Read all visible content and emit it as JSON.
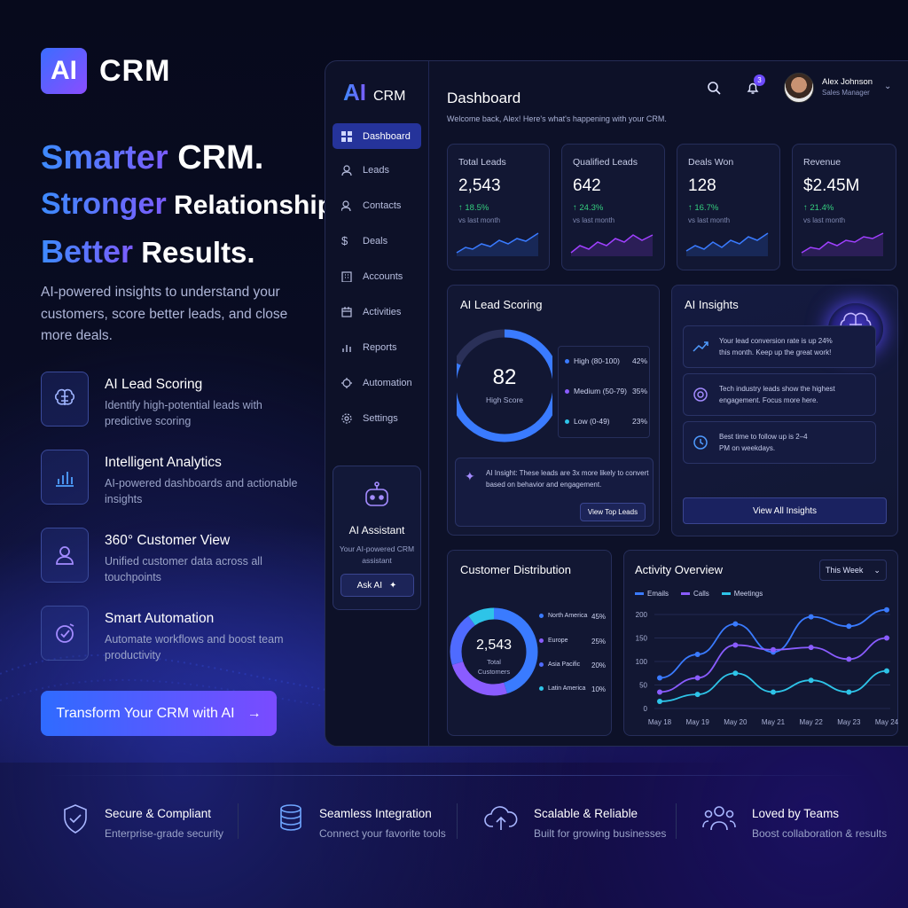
{
  "brand": {
    "mark": "AI",
    "name": "CRM"
  },
  "headline": {
    "line1_accent": "Smarter",
    "line1_rest": " CRM.",
    "line2_accent": "Stronger",
    "line2_rest": " Relationships.",
    "line3_accent": "Better",
    "line3_rest": " Results."
  },
  "intro": "AI-powered insights to understand your customers, score better leads, and close more deals.",
  "features": [
    {
      "title": "AI Lead Scoring",
      "desc": "Identify high-potential leads with predictive scoring",
      "icon": "brain-icon"
    },
    {
      "title": "Intelligent Analytics",
      "desc": "AI-powered dashboards and actionable insights",
      "icon": "bar-chart-icon"
    },
    {
      "title": "360° Customer View",
      "desc": "Unified customer data across all touchpoints",
      "icon": "user-icon"
    },
    {
      "title": "Smart Automation",
      "desc": "Automate workflows and boost team productivity",
      "icon": "check-circle-icon"
    }
  ],
  "cta": "Transform Your CRM with AI",
  "app": {
    "brand": {
      "a": "AI",
      "c": "CRM"
    },
    "nav": [
      "Dashboard",
      "Leads",
      "Contacts",
      "Deals",
      "Accounts",
      "Activities",
      "Reports",
      "Automation",
      "Settings"
    ],
    "assistant": {
      "title": "AI Assistant",
      "desc": "Your AI-powered CRM assistant",
      "button": "Ask AI"
    },
    "title": "Dashboard",
    "welcome": "Welcome back, Alex!  Here's what's happening with your CRM.",
    "notifications": "3",
    "user": {
      "name": "Alex Johnson",
      "role": "Sales Manager"
    },
    "kpis": [
      {
        "label": "Total Leads",
        "value": "2,543",
        "change": "↑ 18.5%",
        "vs": "vs last month"
      },
      {
        "label": "Qualified Leads",
        "value": "642",
        "change": "↑ 24.3%",
        "vs": "vs last month"
      },
      {
        "label": "Deals Won",
        "value": "128",
        "change": "↑ 16.7%",
        "vs": "vs last month"
      },
      {
        "label": "Revenue",
        "value": "$2.45M",
        "change": "↑ 21.4%",
        "vs": "vs last month"
      }
    ],
    "lead_scoring": {
      "title": "AI Lead Scoring",
      "score": "82",
      "score_label": "High Score",
      "segments": [
        {
          "label": "High (80-100)",
          "pct": "42%",
          "value": 42,
          "color": "#3a7bff"
        },
        {
          "label": "Medium (50-79)",
          "pct": "35%",
          "value": 35,
          "color": "#8a5cff"
        },
        {
          "label": "Low (0-49)",
          "pct": "23%",
          "value": 23,
          "color": "#2ec4e8"
        }
      ],
      "insight": "AI Insight: These leads are 3x more likely to convert based on behavior and engagement.",
      "button": "View Top Leads"
    },
    "insights": {
      "title": "AI Insights",
      "items": [
        "Your lead conversion rate is up 24% this month. Keep up the great work!",
        "Tech industry leads show the highest engagement. Focus more here.",
        "Best time to follow up is 2–4 PM on weekdays."
      ],
      "button": "View All Insights"
    },
    "distribution": {
      "title": "Customer Distribution",
      "total": "2,543",
      "total_label": "Total Customers",
      "regions": [
        {
          "label": "North America",
          "pct": "45%",
          "value": 45,
          "color": "#3a7bff"
        },
        {
          "label": "Europe",
          "pct": "25%",
          "value": 25,
          "color": "#8a5cff"
        },
        {
          "label": "Asia Pacific",
          "pct": "20%",
          "value": 20,
          "color": "#4f6bff"
        },
        {
          "label": "Latin America",
          "pct": "10%",
          "value": 10,
          "color": "#2ec4e8"
        }
      ]
    },
    "activity": {
      "title": "Activity Overview",
      "range": "This Week"
    }
  },
  "chart_data": {
    "type": "line",
    "title": "Activity Overview",
    "x": [
      "May 18",
      "May 19",
      "May 20",
      "May 21",
      "May 22",
      "May 23",
      "May 24"
    ],
    "ylim": [
      0,
      200
    ],
    "yticks": [
      0,
      50,
      100,
      150,
      200
    ],
    "series": [
      {
        "name": "Emails",
        "color": "#3a7bff",
        "values": [
          65,
          115,
          180,
          120,
          195,
          175,
          210
        ]
      },
      {
        "name": "Calls",
        "color": "#8a5cff",
        "values": [
          35,
          65,
          135,
          125,
          130,
          105,
          150
        ]
      },
      {
        "name": "Meetings",
        "color": "#2ec4e8",
        "values": [
          15,
          30,
          75,
          35,
          60,
          35,
          80
        ]
      }
    ],
    "legend": "top-left",
    "grid": true
  },
  "bottom": [
    {
      "title": "Secure & Compliant",
      "desc": "Enterprise-grade security",
      "icon": "shield-icon"
    },
    {
      "title": "Seamless Integration",
      "desc": "Connect your favorite tools",
      "icon": "database-icon"
    },
    {
      "title": "Scalable & Reliable",
      "desc": "Built for growing businesses",
      "icon": "cloud-icon"
    },
    {
      "title": "Loved by Teams",
      "desc": "Boost collaboration & results",
      "icon": "team-icon"
    }
  ]
}
